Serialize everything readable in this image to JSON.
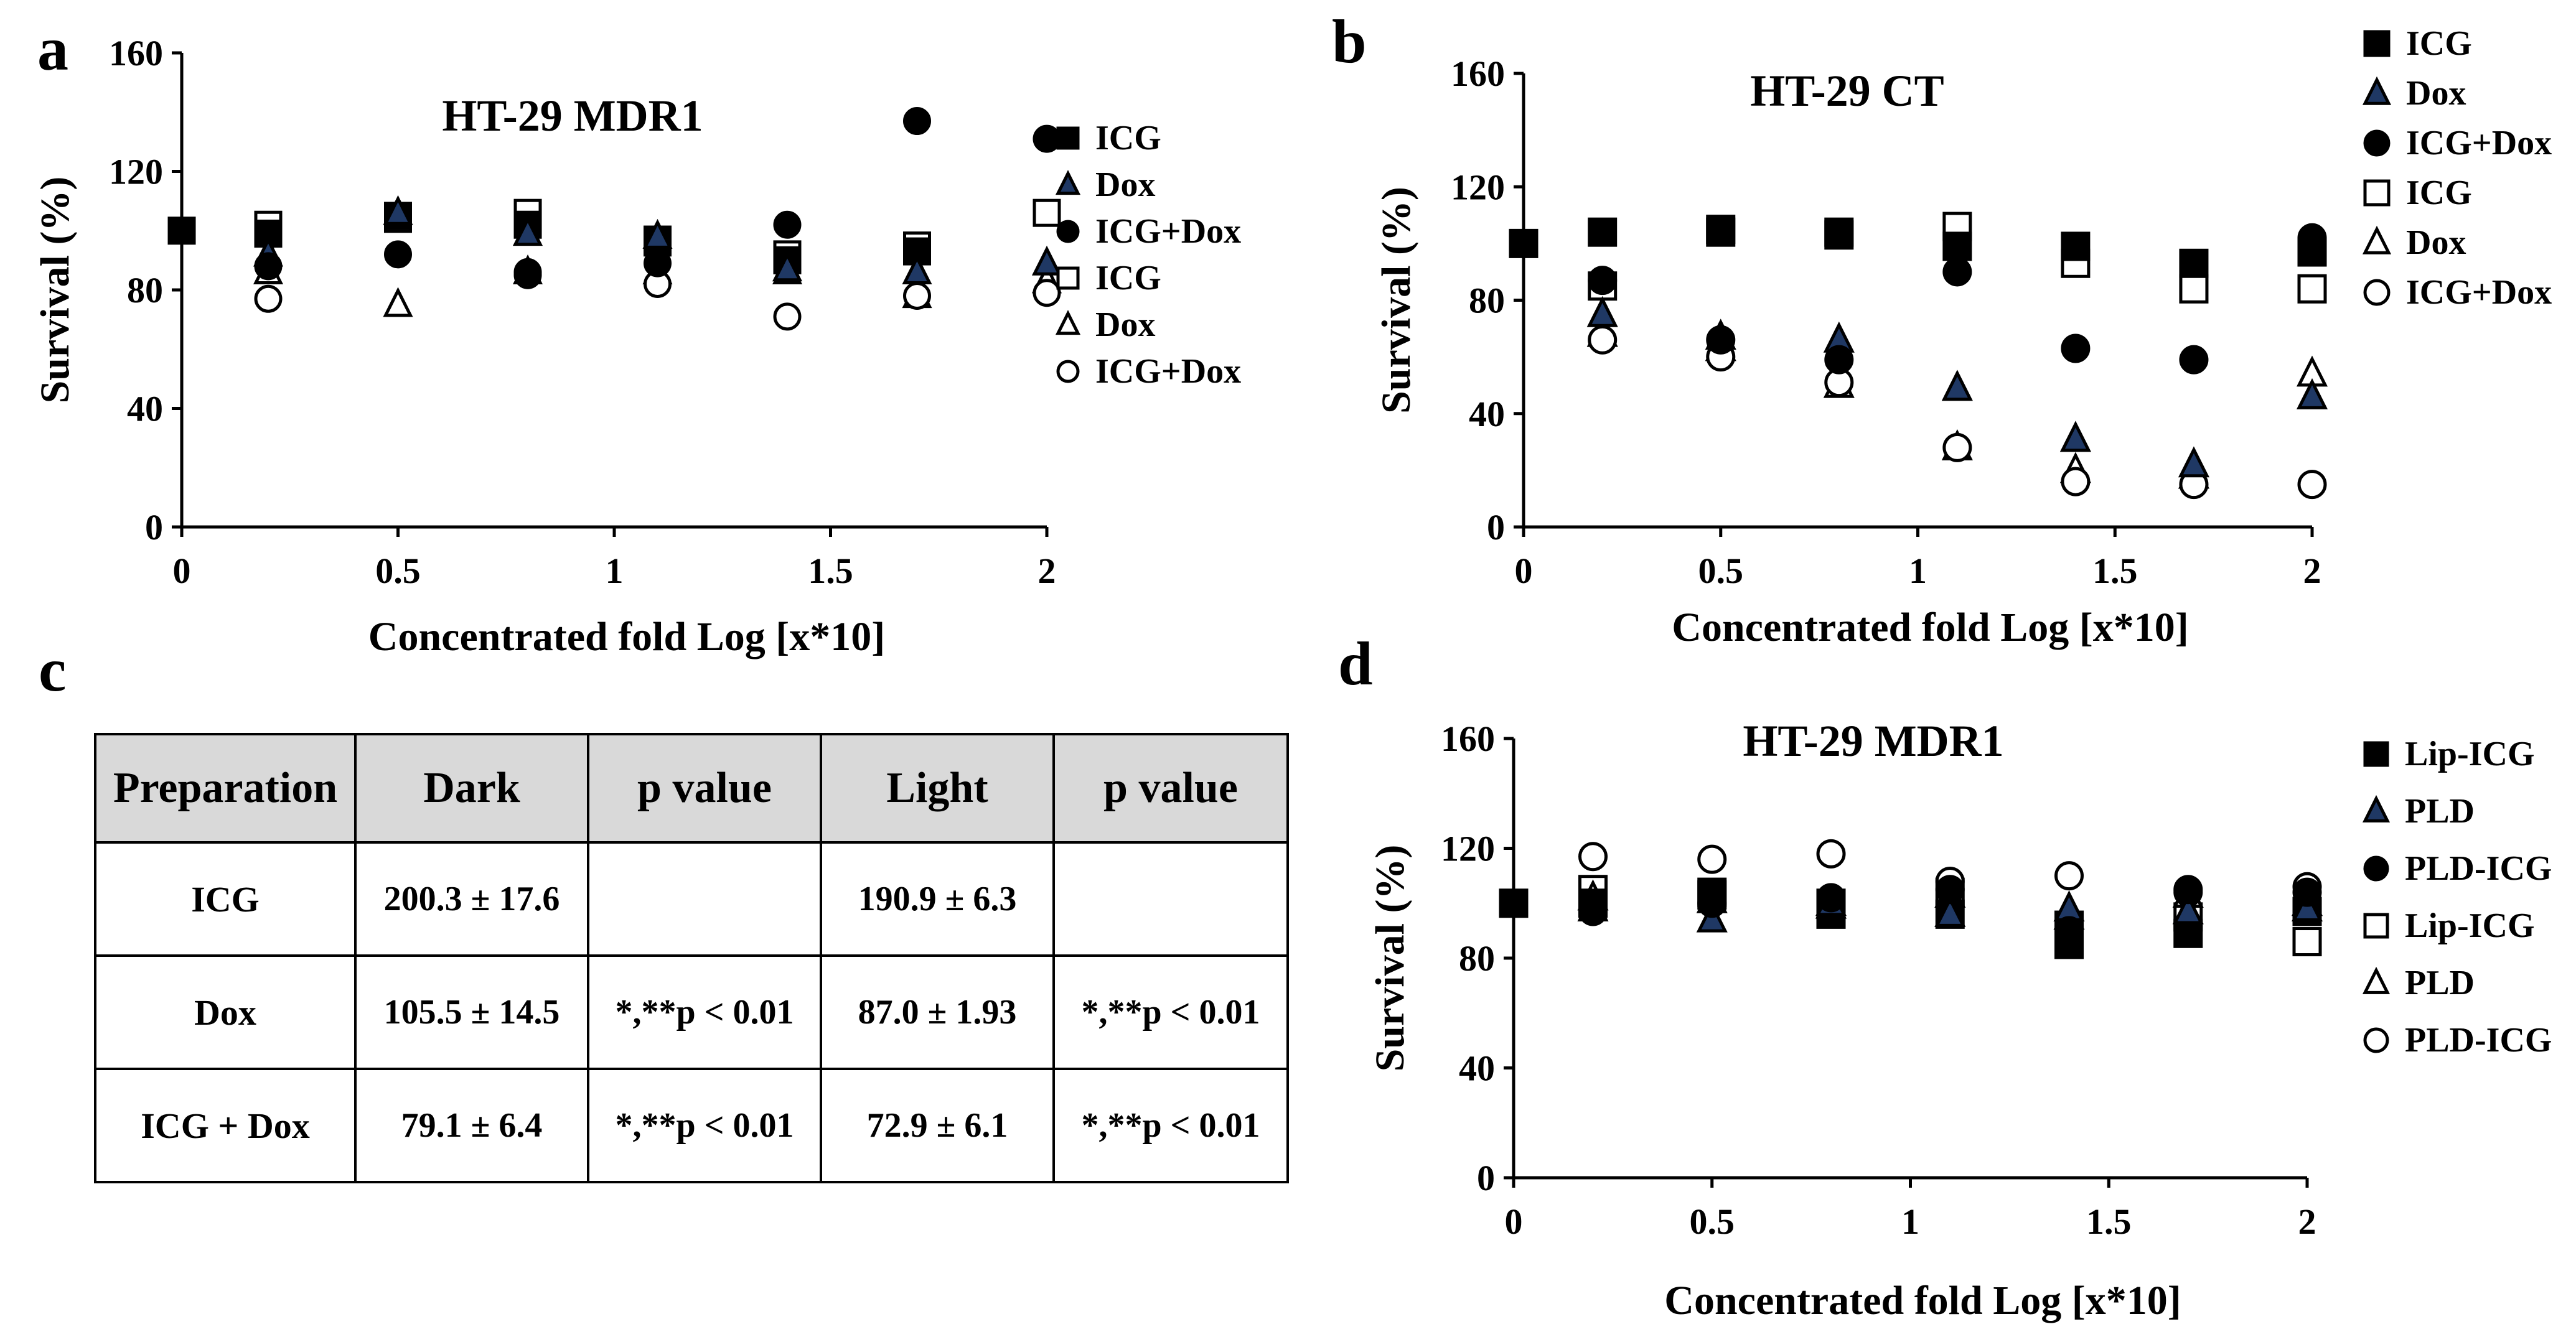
{
  "charts": {
    "a": {
      "panel_label": "a",
      "title": "HT-29 MDR1",
      "ylabel": "Survival (%)",
      "xlabel": "Concentrated fold Log [x*10]",
      "xlim": [
        0,
        2
      ],
      "ylim": [
        0,
        160
      ],
      "xticks": [
        "0",
        "0.5",
        "1",
        "1.5",
        "2"
      ],
      "yticks": [
        "0",
        "40",
        "80",
        "120",
        "160"
      ],
      "legend": [
        "ICG",
        "Dox",
        "ICG+Dox",
        "ICG",
        "Dox",
        "ICG+Dox"
      ]
    },
    "b": {
      "panel_label": "b",
      "title": "HT-29 CT",
      "ylabel": "Survival (%)",
      "xlabel": "Concentrated fold Log [x*10]",
      "xlim": [
        0,
        2
      ],
      "ylim": [
        0,
        160
      ],
      "xticks": [
        "0",
        "0.5",
        "1",
        "1.5",
        "2"
      ],
      "yticks": [
        "0",
        "40",
        "80",
        "120",
        "160"
      ],
      "legend": [
        "ICG",
        "Dox",
        "ICG+Dox",
        "ICG",
        "Dox",
        "ICG+Dox"
      ]
    },
    "d": {
      "panel_label": "d",
      "title": "HT-29 MDR1",
      "ylabel": "Survival (%)",
      "xlabel": "Concentrated fold Log [x*10]",
      "xlim": [
        0,
        2
      ],
      "ylim": [
        0,
        160
      ],
      "xticks": [
        "0",
        "0.5",
        "1",
        "1.5",
        "2"
      ],
      "yticks": [
        "0",
        "40",
        "80",
        "120",
        "160"
      ],
      "legend": [
        "Lip-ICG",
        "PLD",
        "PLD-ICG",
        "Lip-ICG",
        "PLD",
        "PLD-ICG"
      ]
    }
  },
  "table_c": {
    "panel_label": "c",
    "headers": [
      "Preparation",
      "Dark",
      "p value",
      "Light",
      "p value"
    ],
    "rows": [
      [
        "ICG",
        "200.3 ± 17.6",
        "",
        "190.9 ± 6.3",
        ""
      ],
      [
        "Dox",
        "105.5 ± 14.5",
        "*,**p < 0.01",
        "87.0 ± 1.93",
        "*,**p < 0.01"
      ],
      [
        "ICG + Dox",
        "79.1 ± 6.4",
        "*,**p < 0.01",
        "72.9 ± 6.1",
        "*,**p < 0.01"
      ]
    ]
  },
  "chart_data": [
    {
      "type": "scatter",
      "title": "HT-29 MDR1",
      "xlabel": "Concentrated fold Log [x*10]",
      "ylabel": "Survival (%)",
      "xlim": [
        0,
        2
      ],
      "ylim": [
        0,
        160
      ],
      "x": [
        0,
        0.2,
        0.5,
        0.8,
        1.1,
        1.4,
        1.7,
        2
      ],
      "series": [
        {
          "name": "ICG",
          "marker": "square-filled",
          "values": [
            100,
            99,
            105,
            102,
            96,
            90,
            93,
            null
          ]
        },
        {
          "name": "Dox",
          "marker": "triangle-filled",
          "values": [
            null,
            92,
            106,
            99,
            98,
            87,
            86,
            89
          ]
        },
        {
          "name": "ICG+Dox",
          "marker": "circle-filled",
          "values": [
            null,
            88,
            92,
            86,
            89,
            102,
            137,
            131
          ]
        },
        {
          "name": "ICG",
          "marker": "square-open",
          "values": [
            null,
            102,
            104,
            106,
            97,
            92,
            95,
            106
          ]
        },
        {
          "name": "Dox",
          "marker": "triangle-open",
          "values": [
            null,
            86,
            75,
            86,
            86,
            86,
            78,
            83
          ]
        },
        {
          "name": "ICG+Dox",
          "marker": "circle-open",
          "values": [
            null,
            77,
            null,
            85,
            82,
            71,
            78,
            79
          ]
        }
      ]
    },
    {
      "type": "scatter",
      "title": "HT-29 CT",
      "xlabel": "Concentrated fold Log [x*10]",
      "ylabel": "Survival (%)",
      "xlim": [
        0,
        2
      ],
      "ylim": [
        0,
        160
      ],
      "x": [
        0,
        0.2,
        0.5,
        0.8,
        1.1,
        1.4,
        1.7,
        2
      ],
      "series": [
        {
          "name": "ICG",
          "marker": "square-filled",
          "values": [
            100,
            104,
            104,
            104,
            99,
            99,
            93,
            97
          ]
        },
        {
          "name": "Dox",
          "marker": "triangle-filled",
          "values": [
            null,
            75,
            67,
            66,
            49,
            31,
            22,
            46
          ]
        },
        {
          "name": "ICG+Dox",
          "marker": "circle-filled",
          "values": [
            null,
            87,
            66,
            59,
            90,
            63,
            59,
            102
          ]
        },
        {
          "name": "ICG",
          "marker": "square-open",
          "values": [
            null,
            85,
            105,
            103,
            106,
            93,
            84,
            84
          ]
        },
        {
          "name": "Dox",
          "marker": "triangle-open",
          "values": [
            null,
            68,
            63,
            50,
            28,
            20,
            18,
            54
          ]
        },
        {
          "name": "ICG+Dox",
          "marker": "circle-open",
          "values": [
            null,
            66,
            60,
            51,
            28,
            16,
            15,
            15
          ]
        }
      ]
    },
    {
      "type": "scatter",
      "title": "HT-29 MDR1",
      "xlabel": "Concentrated fold Log [x*10]",
      "ylabel": "Survival (%)",
      "xlim": [
        0,
        2
      ],
      "ylim": [
        0,
        160
      ],
      "x": [
        0,
        0.2,
        0.5,
        0.8,
        1.1,
        1.4,
        1.7,
        2
      ],
      "series": [
        {
          "name": "Lip-ICG",
          "marker": "square-filled",
          "values": [
            100,
            100,
            104,
            96,
            96,
            85,
            89,
            97
          ]
        },
        {
          "name": "PLD",
          "marker": "triangle-filled",
          "values": [
            null,
            98,
            94,
            100,
            96,
            98,
            97,
            98
          ]
        },
        {
          "name": "PLD-ICG",
          "marker": "circle-filled",
          "values": [
            null,
            97,
            100,
            102,
            105,
            90,
            105,
            104
          ]
        },
        {
          "name": "Lip-ICG",
          "marker": "square-open",
          "values": [
            null,
            105,
            103,
            100,
            104,
            92,
            95,
            86
          ]
        },
        {
          "name": "PLD",
          "marker": "triangle-open",
          "values": [
            null,
            102,
            101,
            99,
            103,
            95,
            103,
            100
          ]
        },
        {
          "name": "PLD-ICG",
          "marker": "circle-open",
          "values": [
            null,
            117,
            116,
            118,
            108,
            110,
            104,
            106
          ]
        }
      ]
    }
  ]
}
